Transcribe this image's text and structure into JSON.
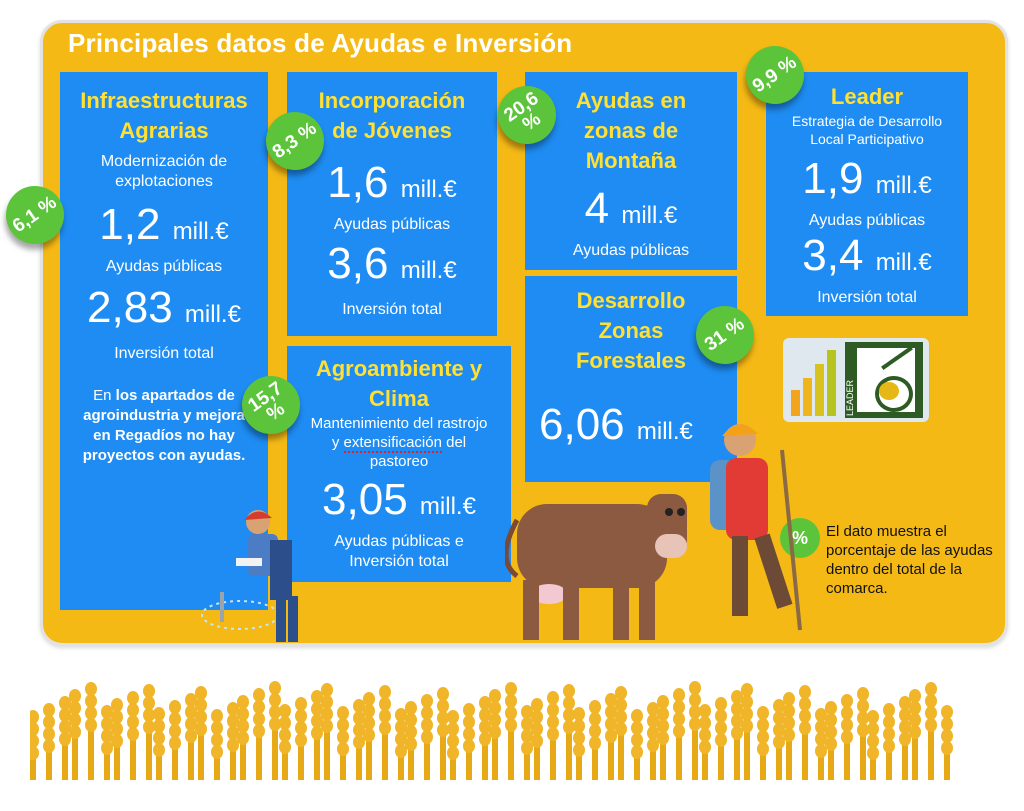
{
  "title": "Principales datos de Ayudas e Inversión",
  "infra": {
    "heading1": "Infraestructuras",
    "heading2": "Agrarias",
    "sub1": "Modernización de",
    "sub2": "explotaciones",
    "value1": "1,2",
    "unit": "mill.€",
    "label1": "Ayudas públicas",
    "value2": "2,83",
    "label2": "Inversión total",
    "note_plain1": "En ",
    "note_bold1": "los apartados de",
    "note_line2": "agroindustria y mejora",
    "note_line3": "en Regadíos no hay",
    "note_line4": "proyectos con ayudas.",
    "badge": "6,1 %"
  },
  "jovenes": {
    "heading1": "Incorporación",
    "heading2": "de Jóvenes",
    "value1": "1,6",
    "unit": "mill.€",
    "label1": "Ayudas públicas",
    "value2": "3,6",
    "label2": "Inversión total",
    "badge": "8,3 %"
  },
  "agro": {
    "heading1": "Agroambiente y",
    "heading2": "Clima",
    "sub1": "Mantenimiento del rastrojo",
    "sub2a": "y ",
    "sub2b": "extensificación",
    "sub2c": " del",
    "sub3": "pastoreo",
    "value": "3,05",
    "unit": "mill.€",
    "label1": "Ayudas públicas e",
    "label2": "Inversión total",
    "badge": "15,7 %"
  },
  "montana": {
    "heading1": "Ayudas en",
    "heading2": "zonas de",
    "heading3": "Montaña",
    "value": "4",
    "unit": "mill.€",
    "label": "Ayudas públicas",
    "badge": "20,6 %"
  },
  "forestales": {
    "heading1": "Desarrollo",
    "heading2": "Zonas",
    "heading3": "Forestales",
    "value": "6,06",
    "unit": "mill.€",
    "badge": "31 %"
  },
  "leader": {
    "heading": "Leader",
    "sub1": "Estrategia de Desarrollo",
    "sub2": "Local Participativo",
    "value1": "1,9",
    "unit": "mill.€",
    "label1": "Ayudas públicas",
    "value2": "3,4",
    "label2": "Inversión total",
    "badge": "9,9 %",
    "logo_text": "LEADER"
  },
  "legend": {
    "symbol": "%",
    "text": "El dato muestra el porcentaje de las ayudas dentro del total de la comarca."
  },
  "colors": {
    "panel": "#f5b915",
    "box": "#1e8cf2",
    "heading": "#ffe033",
    "badge": "#5cc43a"
  }
}
